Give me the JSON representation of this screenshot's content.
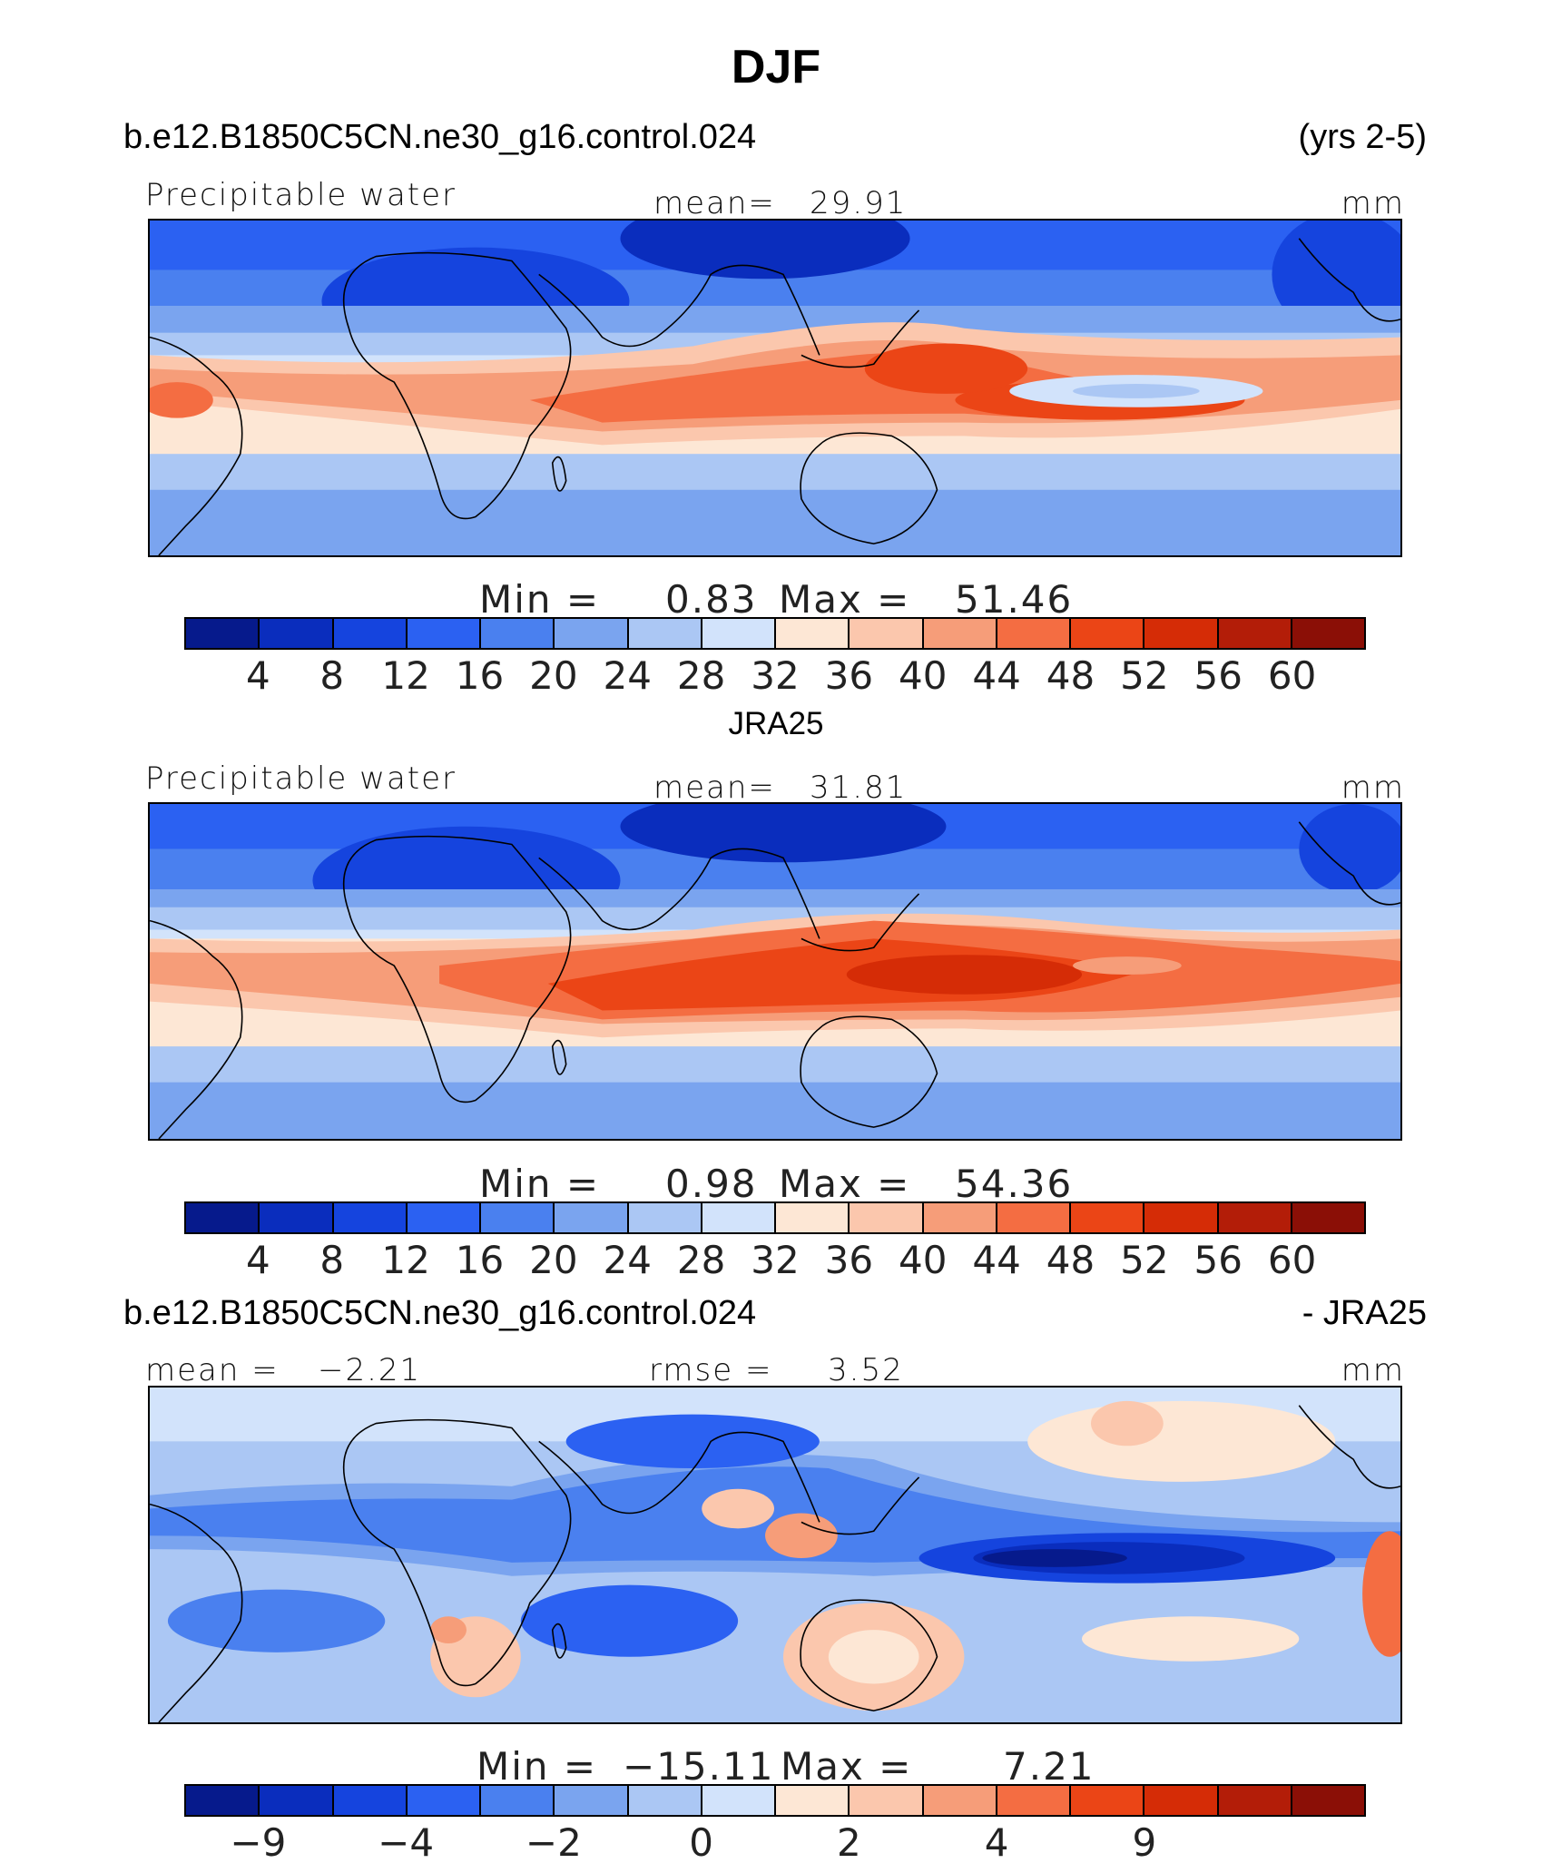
{
  "page_title": "DJF",
  "panel1": {
    "case": "b.e12.B1850C5CN.ne30_g16.control.024",
    "years": "(yrs 2-5)",
    "variable": "Precipitable water",
    "mean_label": "mean=",
    "mean_value": "29.91",
    "units": "mm",
    "min_label": "Min =",
    "min_value": "0.83",
    "max_label": "Max =",
    "max_value": "51.46"
  },
  "panel2": {
    "title": "JRA25",
    "variable": "Precipitable water",
    "mean_label": "mean=",
    "mean_value": "31.81",
    "units": "mm",
    "min_label": "Min =",
    "min_value": "0.98",
    "max_label": "Max =",
    "max_value": "54.36"
  },
  "panel3": {
    "case": "b.e12.B1850C5CN.ne30_g16.control.024",
    "minus": "- JRA25",
    "mean_label": "mean =",
    "mean_value": "−2.21",
    "rmse_label": "rmse =",
    "rmse_value": "3.52",
    "units": "mm",
    "min_label": "Min =",
    "min_value": "−15.11",
    "max_label": "Max =",
    "max_value": "7.21"
  },
  "colors": {
    "full_palette": [
      "#061a8c",
      "#0a2dbd",
      "#1544de",
      "#2b61f2",
      "#4a80ef",
      "#7aa4ef",
      "#abc7f4",
      "#d2e3fb",
      "#fde7d5",
      "#fbc7ad",
      "#f69d79",
      "#f46d42",
      "#eb4516",
      "#d52c06",
      "#b31d08",
      "#8b0f06"
    ],
    "diff_palette": [
      "#061a8c",
      "#0a2dbd",
      "#1544de",
      "#2b61f2",
      "#4a80ef",
      "#7aa4ef",
      "#abc7f4",
      "#d2e3fb",
      "#fde7d5",
      "#fbc7ad",
      "#f69d79",
      "#f46d42",
      "#eb4516",
      "#d52c06",
      "#b31d08",
      "#8b0f06"
    ]
  },
  "chart_data": [
    {
      "type": "contour-map",
      "title": "b.e12.B1850C5CN.ne30_g16.control.024 (yrs 2-5)",
      "variable": "Precipitable water",
      "units": "mm",
      "mean": 29.91,
      "min": 0.83,
      "max": 51.46,
      "levels": [
        4,
        8,
        12,
        16,
        20,
        24,
        28,
        32,
        36,
        40,
        44,
        48,
        52,
        56,
        60
      ],
      "level_labels": [
        "4",
        "8",
        "12",
        "16",
        "20",
        "24",
        "28",
        "32",
        "36",
        "40",
        "44",
        "48",
        "52",
        "56",
        "60"
      ]
    },
    {
      "type": "contour-map",
      "title": "JRA25",
      "variable": "Precipitable water",
      "units": "mm",
      "mean": 31.81,
      "min": 0.98,
      "max": 54.36,
      "levels": [
        4,
        8,
        12,
        16,
        20,
        24,
        28,
        32,
        36,
        40,
        44,
        48,
        52,
        56,
        60
      ],
      "level_labels": [
        "4",
        "8",
        "12",
        "16",
        "20",
        "24",
        "28",
        "32",
        "36",
        "40",
        "44",
        "48",
        "52",
        "56",
        "60"
      ]
    },
    {
      "type": "contour-map",
      "title": "b.e12.B1850C5CN.ne30_g16.control.024 - JRA25",
      "units": "mm",
      "mean": -2.21,
      "rmse": 3.52,
      "min": -15.11,
      "max": 7.21,
      "level_labels": [
        {
          "label": "−9",
          "boundary": 1
        },
        {
          "label": "−4",
          "boundary": 3
        },
        {
          "label": "−2",
          "boundary": 5
        },
        {
          "label": "0",
          "boundary": 7
        },
        {
          "label": "2",
          "boundary": 9
        },
        {
          "label": "4",
          "boundary": 11
        },
        {
          "label": "9",
          "boundary": 13
        }
      ]
    }
  ]
}
